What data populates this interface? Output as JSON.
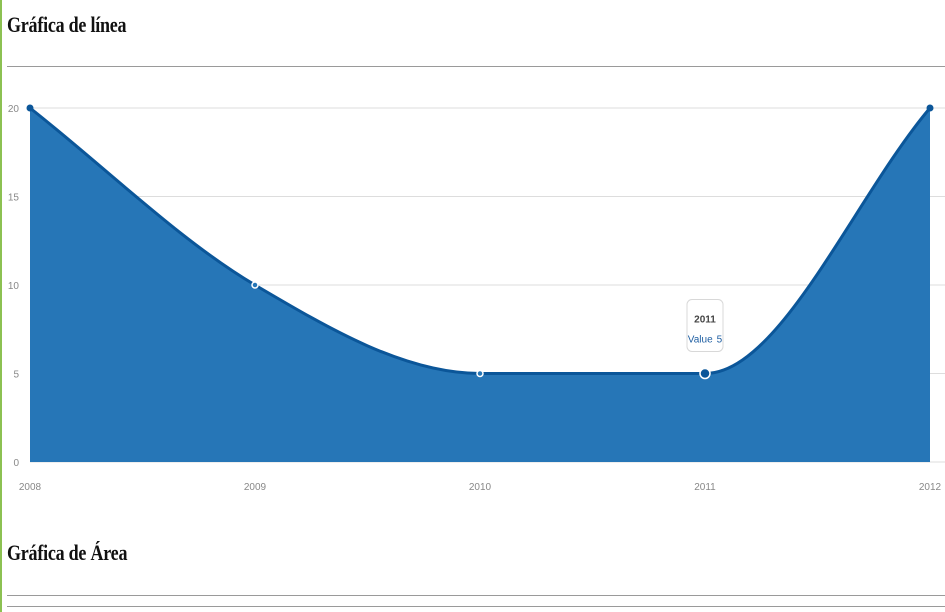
{
  "sections": {
    "line_title": "Gráfica de línea",
    "area_title": "Gráfica de Área"
  },
  "chart_data": {
    "type": "area",
    "categories": [
      "2008",
      "2009",
      "2010",
      "2011",
      "2012"
    ],
    "series": [
      {
        "values": [
          20,
          10,
          5,
          5,
          20
        ]
      }
    ],
    "yticks": [
      0,
      5,
      10,
      15,
      20
    ],
    "ylim": [
      0,
      20
    ],
    "grid": true,
    "colors": {
      "fill": "#2676b7",
      "line": "#0b5699",
      "grid": "#dddddd"
    },
    "tooltip": {
      "category": "2011",
      "label": "Value",
      "value": "5"
    }
  }
}
